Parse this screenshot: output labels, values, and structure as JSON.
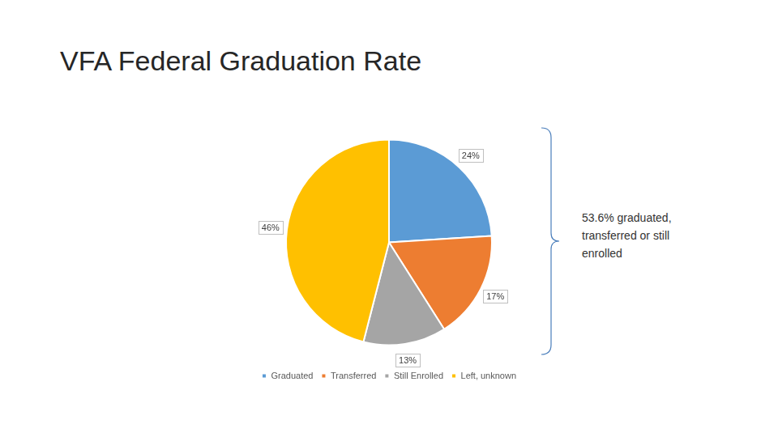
{
  "chart_data": {
    "type": "pie",
    "title": "VFA Federal Graduation Rate",
    "categories": [
      "Graduated",
      "Transferred",
      "Still Enrolled",
      "Left, unknown"
    ],
    "values": [
      24,
      17,
      13,
      46
    ],
    "value_labels": [
      "24%",
      "17%",
      "13%",
      "46%"
    ],
    "colors": [
      "#5B9BD5",
      "#ED7D31",
      "#A5A5A5",
      "#FFC000"
    ],
    "data_labels": true,
    "legend": "bottom",
    "annotations": [
      "53.6% graduated, transferred or still enrolled"
    ]
  }
}
